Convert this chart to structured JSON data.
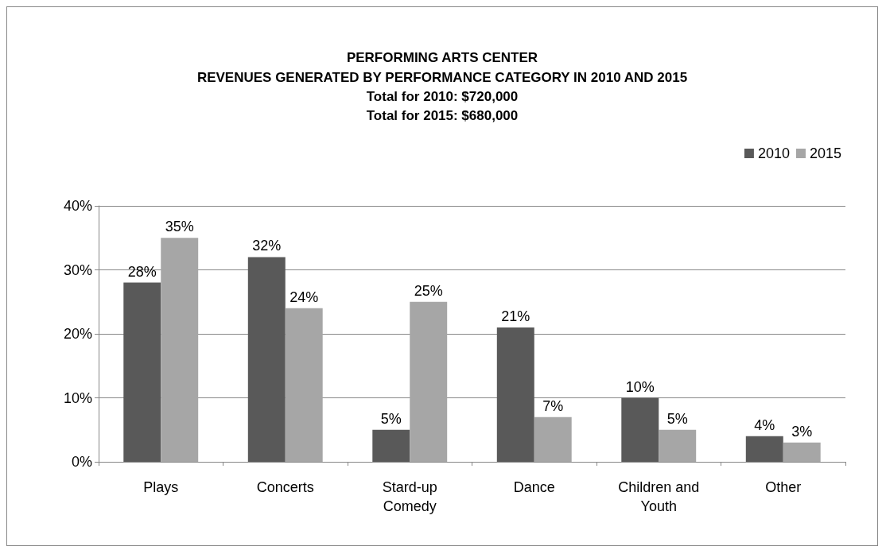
{
  "chart_data": {
    "type": "bar",
    "title": "PERFORMING ARTS CENTER",
    "subtitle": "REVENUES GENERATED BY PERFORMANCE CATEGORY IN 2010 AND 2015\nTotal for 2010: $720,000\nTotal for 2015: $680,000",
    "categories": [
      "Plays",
      "Concerts",
      "Stard-up\nComedy",
      "Dance",
      "Children and\nYouth",
      "Other"
    ],
    "series": [
      {
        "name": "2010",
        "color": "#595959",
        "values": [
          28,
          32,
          5,
          21,
          10,
          4
        ],
        "value_labels": [
          "28%",
          "32%",
          "5%",
          "21%",
          "10%",
          "4%"
        ]
      },
      {
        "name": "2015",
        "color": "#a6a6a6",
        "values": [
          35,
          24,
          25,
          7,
          5,
          3
        ],
        "value_labels": [
          "35%",
          "24%",
          "25%",
          "7%",
          "5%",
          "3%"
        ]
      }
    ],
    "ylim": [
      0,
      40
    ],
    "yticks": [
      {
        "value": 0,
        "label": "0%"
      },
      {
        "value": 10,
        "label": "10%"
      },
      {
        "value": 20,
        "label": "20%"
      },
      {
        "value": 30,
        "label": "30%"
      },
      {
        "value": 40,
        "label": "40%"
      }
    ],
    "grid": "y",
    "legend": "top right"
  }
}
